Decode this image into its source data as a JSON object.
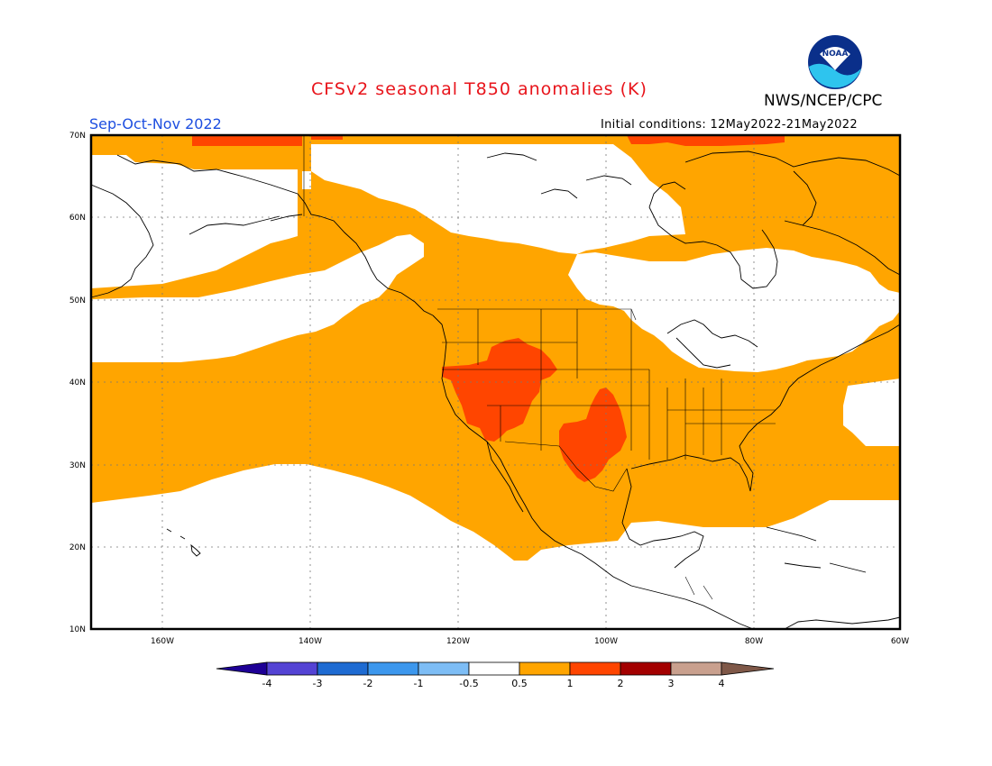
{
  "header": {
    "title": "CFSv2 seasonal T850 anomalies (K)",
    "agency": "NWS/NCEP/CPC",
    "season": "Sep-Oct-Nov 2022",
    "initial_conditions": "Initial conditions: 12May2022-21May2022",
    "logo_text": "NOAA"
  },
  "map": {
    "lat_labels": [
      "70N",
      "60N",
      "50N",
      "40N",
      "30N",
      "20N",
      "10N"
    ],
    "lon_labels": [
      "160W",
      "140W",
      "120W",
      "100W",
      "80W",
      "60W"
    ],
    "colors": {
      "anom_05_1": "#ffa500",
      "anom_1_2": "#ff4500",
      "background": "#ffffff",
      "coast": "#000000"
    }
  },
  "colorbar": {
    "labels": [
      "-4",
      "-3",
      "-2",
      "-1",
      "-0.5",
      "0.5",
      "1",
      "2",
      "3",
      "4"
    ],
    "colors": [
      "#1e0096",
      "#5443d4",
      "#1e6bd2",
      "#3c97ed",
      "#7dbdf5",
      "#ffffff",
      "#ffa500",
      "#ff4500",
      "#a30000",
      "#c9a08e",
      "#7f5848"
    ]
  }
}
